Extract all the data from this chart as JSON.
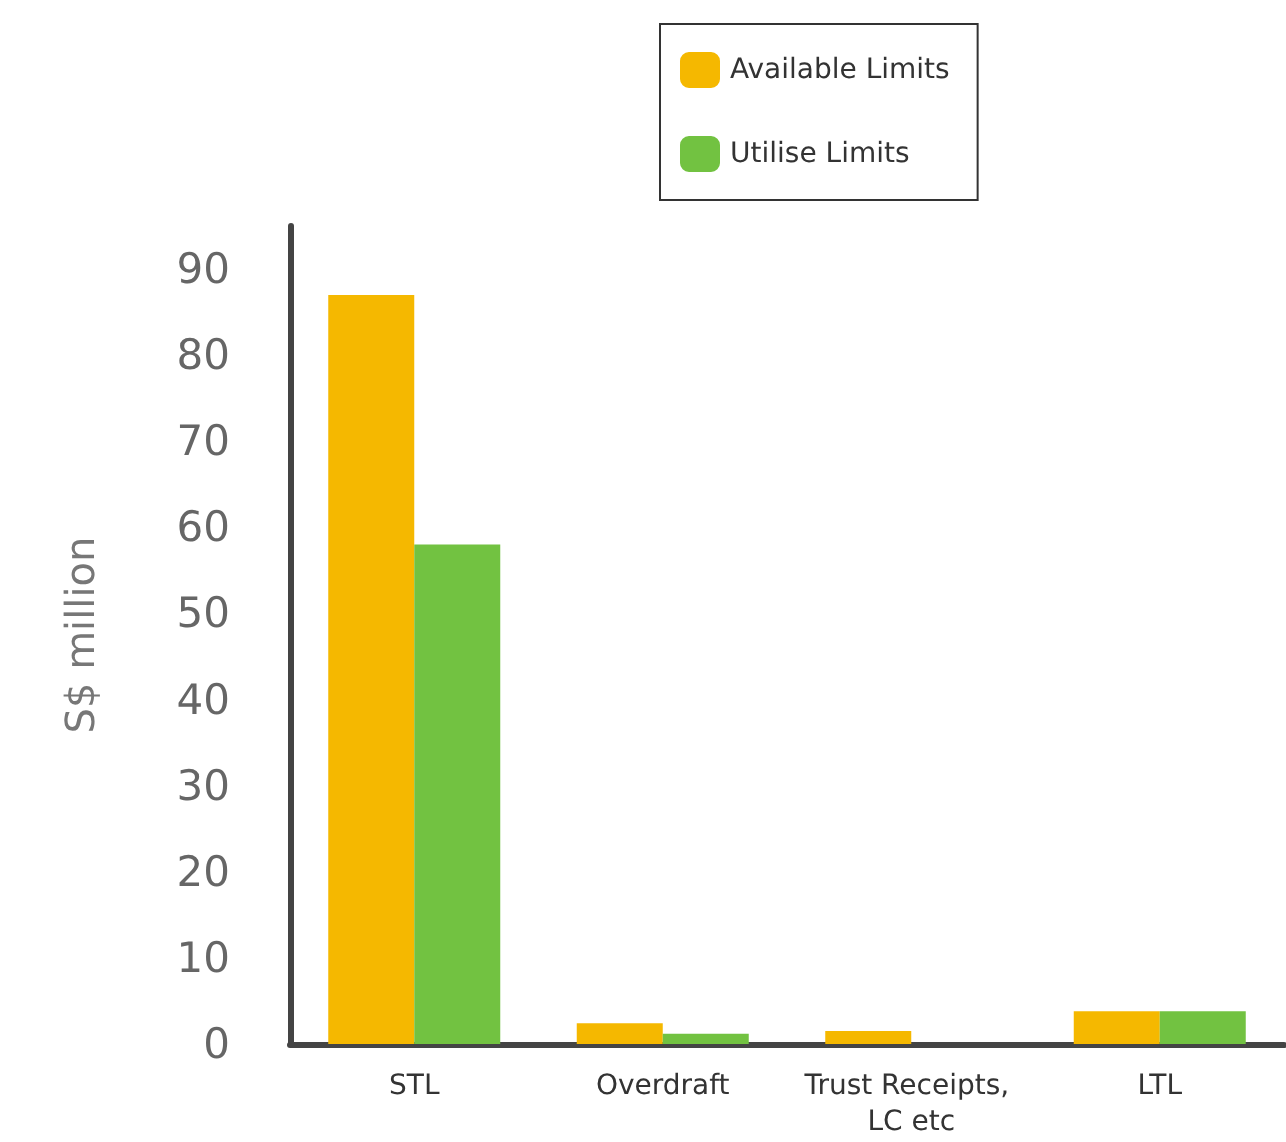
{
  "chart_data": {
    "type": "bar",
    "ylabel": "S$ million",
    "categories": [
      "STL",
      "Overdraft",
      "Trust Receipts, LC etc",
      "LTL"
    ],
    "series": [
      {
        "name": "Available Limits",
        "color": "#f5b800",
        "values": [
          87,
          2.4,
          1.5,
          3.8
        ]
      },
      {
        "name": "Utilise Limits",
        "color": "#72c241",
        "values": [
          58,
          1.2,
          null,
          3.8
        ]
      }
    ],
    "ylim": [
      0,
      95
    ],
    "yticks": [
      0,
      10,
      20,
      30,
      40,
      50,
      60,
      70,
      80,
      90
    ],
    "grid": false,
    "legend": "top"
  }
}
